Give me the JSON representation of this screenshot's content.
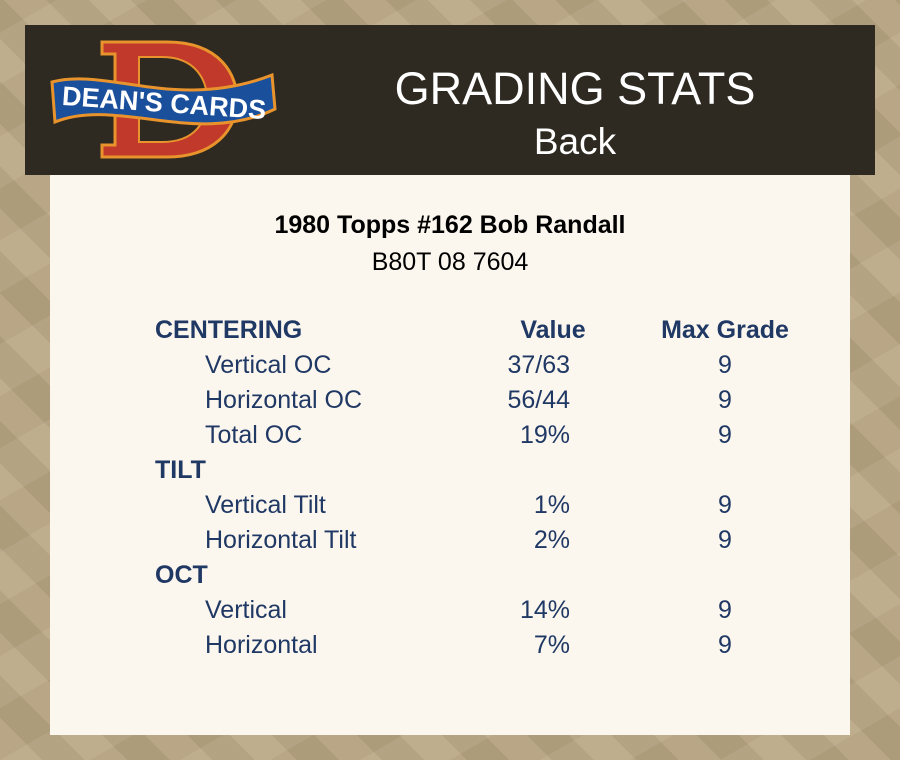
{
  "header": {
    "logo_text": "DEAN'S CARDS",
    "title": "GRADING STATS",
    "subtitle": "Back"
  },
  "card": {
    "name": "1980 Topps #162 Bob Randall",
    "code": "B80T 08 7604"
  },
  "columns": {
    "value": "Value",
    "max_grade": "Max Grade"
  },
  "sections": [
    {
      "label": "CENTERING",
      "rows": [
        {
          "label": "Vertical OC",
          "value": "37/63",
          "max": "9"
        },
        {
          "label": "Horizontal OC",
          "value": "56/44",
          "max": "9"
        },
        {
          "label": "Total OC",
          "value": "19%",
          "max": "9"
        }
      ]
    },
    {
      "label": "TILT",
      "rows": [
        {
          "label": "Vertical Tilt",
          "value": "1%",
          "max": "9"
        },
        {
          "label": "Horizontal Tilt",
          "value": "2%",
          "max": "9"
        }
      ]
    },
    {
      "label": "OCT",
      "rows": [
        {
          "label": "Vertical",
          "value": "14%",
          "max": "9"
        },
        {
          "label": "Horizontal",
          "value": "7%",
          "max": "9"
        }
      ]
    }
  ],
  "colors": {
    "header_bg": "#2e2a22",
    "panel_bg": "#fbf6ee",
    "text_navy": "#1f3864",
    "logo_red": "#c0392b",
    "logo_blue": "#1a4f9c"
  }
}
